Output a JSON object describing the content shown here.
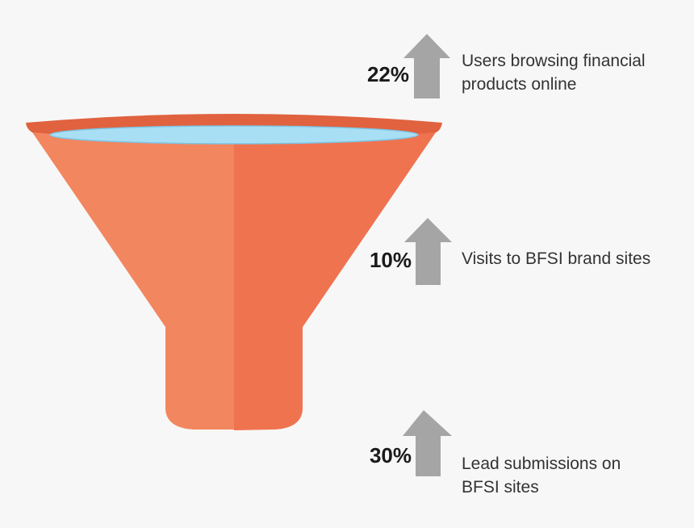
{
  "items": [
    {
      "percent": "22%",
      "description": [
        "Users browsing financial",
        "products online"
      ]
    },
    {
      "percent": "10%",
      "description": [
        "Visits to BFSI brand sites"
      ]
    },
    {
      "percent": "30%",
      "description": [
        "Lead submissions on",
        "BFSI sites"
      ]
    }
  ]
}
